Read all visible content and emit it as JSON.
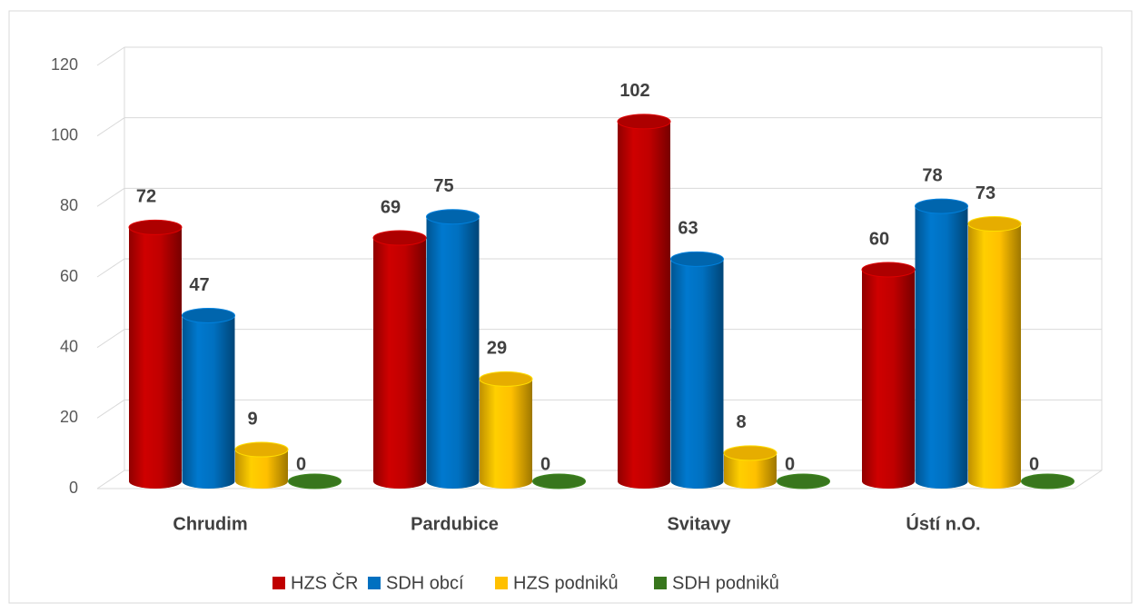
{
  "chart_data": {
    "type": "bar3d",
    "categories": [
      "Chrudim",
      "Pardubice",
      "Svitavy",
      "Ústí n.O."
    ],
    "series": [
      {
        "name": "HZS ČR",
        "color": "#c00000",
        "values": [
          72,
          69,
          102,
          60
        ]
      },
      {
        "name": "SDH obcí",
        "color": "#0070c0",
        "values": [
          47,
          75,
          63,
          78
        ]
      },
      {
        "name": "HZS podniků",
        "color": "#ffc000",
        "values": [
          9,
          29,
          8,
          73
        ]
      },
      {
        "name": "SDH podniků",
        "color": "#38761d",
        "values": [
          0,
          0,
          0,
          0
        ]
      }
    ],
    "ylim": [
      0,
      120
    ],
    "yticks": [
      0,
      20,
      40,
      60,
      80,
      100,
      120
    ],
    "grid": true,
    "legend": "bottom"
  }
}
